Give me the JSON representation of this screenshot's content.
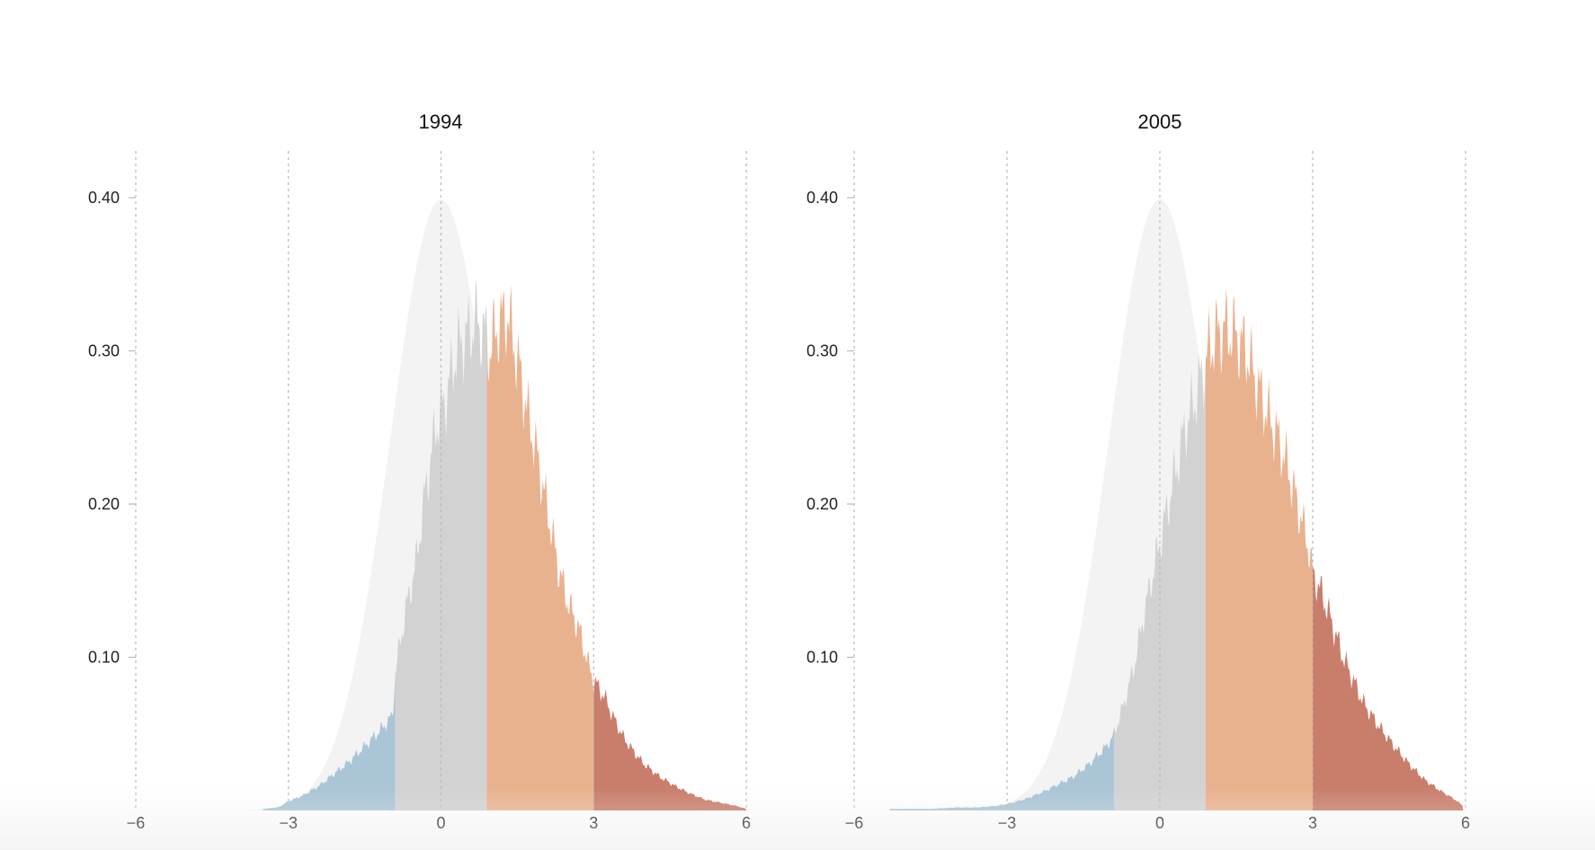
{
  "colors": {
    "normal_fill": "#f3f3f3",
    "cold_fill": "#aac5d6",
    "neutral_fill": "#d3d2d3",
    "warm_fill": "#e9b28f",
    "hot_fill": "#c97d6b",
    "tail_cold": "#4a77a8",
    "grid": "#b8b8b8",
    "axis_text": "#222222"
  },
  "chart_data": [
    {
      "type": "area",
      "title": "1994",
      "xlabel": "",
      "ylabel": "",
      "xlim": [
        -6,
        6
      ],
      "ylim": [
        0,
        0.43
      ],
      "x_ticks": [
        -6,
        -3,
        0,
        3,
        6
      ],
      "x_tick_labels": [
        "−6",
        "−3",
        "0",
        "3",
        "6"
      ],
      "y_ticks": [
        0.1,
        0.2,
        0.3,
        0.4
      ],
      "y_tick_labels": [
        "0.10",
        "0.20",
        "0.30",
        "0.40"
      ],
      "grid": "vertical dashed lines at x ticks",
      "reference_curve": "standard normal density (mean 0, sd 1)",
      "bands": [
        {
          "from": -6,
          "to": -0.9,
          "color": "cold_fill"
        },
        {
          "from": -0.9,
          "to": 0.9,
          "color": "neutral_fill"
        },
        {
          "from": 0.9,
          "to": 3,
          "color": "warm_fill"
        },
        {
          "from": 3,
          "to": 6,
          "color": "hot_fill"
        }
      ],
      "x": [
        -3.5,
        -3.2,
        -3.0,
        -2.7,
        -2.4,
        -2.1,
        -1.8,
        -1.5,
        -1.2,
        -0.95,
        -0.9,
        -0.7,
        -0.5,
        -0.3,
        -0.1,
        0.1,
        0.3,
        0.5,
        0.7,
        0.88,
        0.95,
        1.1,
        1.3,
        1.5,
        1.7,
        1.9,
        2.1,
        2.3,
        2.5,
        2.7,
        2.9,
        3.0,
        3.2,
        3.4,
        3.6,
        3.8,
        4.0,
        4.3,
        4.6,
        4.9,
        5.2,
        5.5,
        5.8,
        6.0
      ],
      "values": [
        0.001,
        0.002,
        0.006,
        0.01,
        0.016,
        0.024,
        0.032,
        0.042,
        0.052,
        0.062,
        0.09,
        0.13,
        0.16,
        0.21,
        0.25,
        0.27,
        0.3,
        0.31,
        0.32,
        0.31,
        0.3,
        0.315,
        0.325,
        0.295,
        0.26,
        0.23,
        0.195,
        0.16,
        0.135,
        0.12,
        0.095,
        0.085,
        0.075,
        0.06,
        0.047,
        0.038,
        0.03,
        0.022,
        0.016,
        0.011,
        0.007,
        0.005,
        0.003,
        0.001
      ]
    },
    {
      "type": "area",
      "title": "2005",
      "xlabel": "",
      "ylabel": "",
      "xlim": [
        -6,
        6
      ],
      "ylim": [
        0,
        0.43
      ],
      "x_ticks": [
        -6,
        -3,
        0,
        3,
        6
      ],
      "x_tick_labels": [
        "−6",
        "−3",
        "0",
        "3",
        "6"
      ],
      "y_ticks": [
        0.1,
        0.2,
        0.3,
        0.4
      ],
      "y_tick_labels": [
        "0.10",
        "0.20",
        "0.30",
        "0.40"
      ],
      "grid": "vertical dashed lines at x ticks",
      "reference_curve": "standard normal density (mean 0, sd 1)",
      "bands": [
        {
          "from": -6,
          "to": -0.9,
          "color": "cold_fill"
        },
        {
          "from": -0.9,
          "to": 0.9,
          "color": "neutral_fill"
        },
        {
          "from": 0.9,
          "to": 3,
          "color": "warm_fill"
        },
        {
          "from": 3,
          "to": 6,
          "color": "hot_fill"
        }
      ],
      "x": [
        -5.3,
        -4.5,
        -4.0,
        -3.6,
        -3.2,
        -2.9,
        -2.6,
        -2.3,
        -2.0,
        -1.7,
        -1.4,
        -1.1,
        -0.92,
        -0.9,
        -0.7,
        -0.5,
        -0.3,
        -0.1,
        0.1,
        0.3,
        0.5,
        0.7,
        0.88,
        0.95,
        1.1,
        1.3,
        1.5,
        1.7,
        1.9,
        2.1,
        2.3,
        2.5,
        2.7,
        2.9,
        3.0,
        3.2,
        3.4,
        3.6,
        3.8,
        4.0,
        4.3,
        4.6,
        4.9,
        5.2,
        5.5,
        5.8,
        5.95
      ],
      "values": [
        0.001,
        0.001,
        0.002,
        0.002,
        0.003,
        0.005,
        0.008,
        0.012,
        0.017,
        0.022,
        0.03,
        0.04,
        0.048,
        0.05,
        0.07,
        0.095,
        0.13,
        0.16,
        0.19,
        0.22,
        0.25,
        0.27,
        0.29,
        0.3,
        0.31,
        0.315,
        0.31,
        0.3,
        0.28,
        0.26,
        0.245,
        0.225,
        0.2,
        0.175,
        0.155,
        0.14,
        0.12,
        0.1,
        0.085,
        0.07,
        0.055,
        0.042,
        0.03,
        0.02,
        0.013,
        0.007,
        0.003
      ]
    }
  ]
}
